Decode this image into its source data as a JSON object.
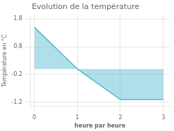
{
  "chart_data": {
    "type": "area",
    "title": "Evolution de la température",
    "xlabel": "heure par heure",
    "ylabel": "Température en °C",
    "x": [
      0,
      1,
      1.27,
      2,
      3
    ],
    "values": [
      1.5,
      0.0,
      -0.3,
      -1.1,
      -1.1
    ],
    "color": "#50b8d0",
    "xlim": [
      -0.1,
      3.15
    ],
    "ylim": [
      -1.35,
      1.95
    ],
    "xticks": [
      0,
      1,
      2,
      3
    ],
    "yticks": [
      -1.2,
      -0.2,
      0.8,
      1.8
    ],
    "grid": true
  }
}
